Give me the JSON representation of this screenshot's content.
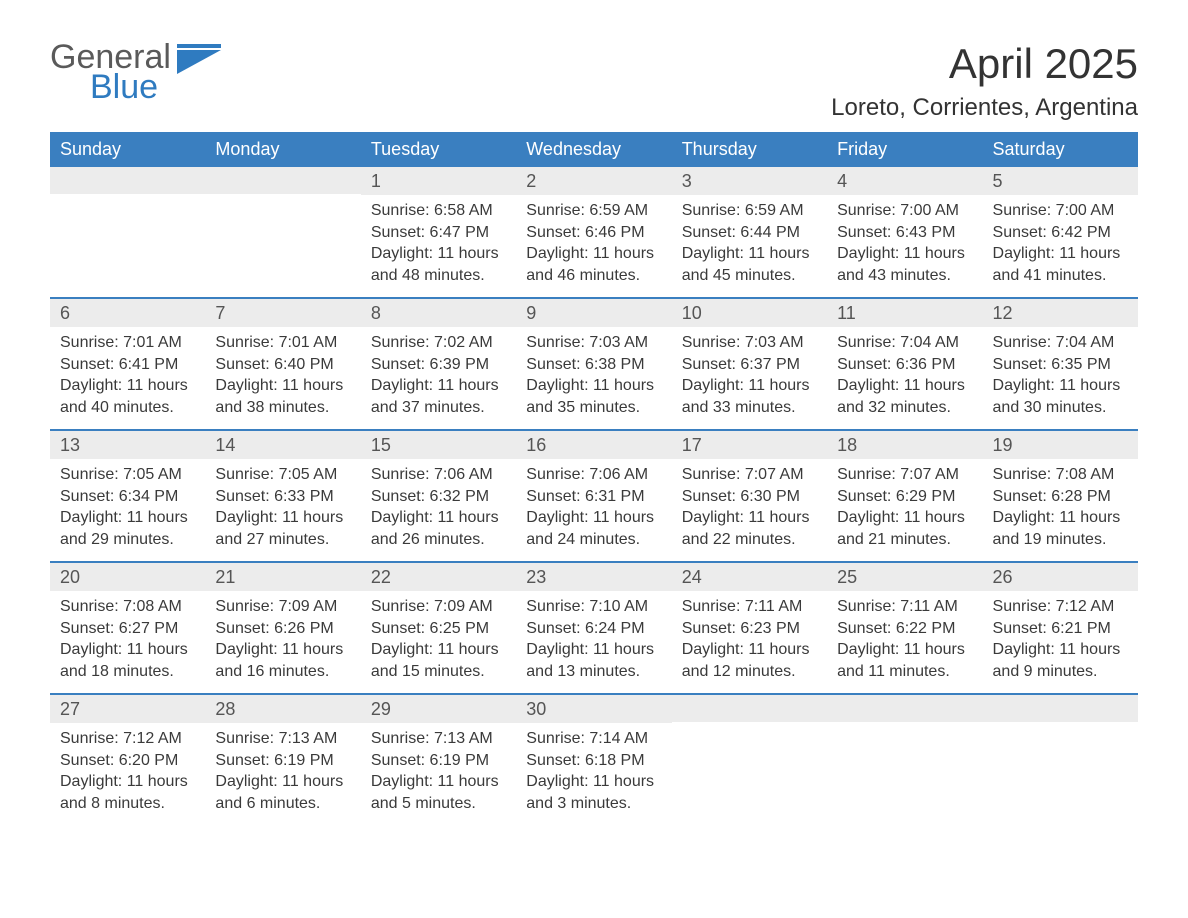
{
  "logo": {
    "text_general": "General",
    "text_blue": "Blue",
    "icon_color": "#2f7bc0"
  },
  "title": "April 2025",
  "location": "Loreto, Corrientes, Argentina",
  "colors": {
    "header_bg": "#3a7fc0",
    "header_text": "#ffffff",
    "daynum_bg": "#ececec",
    "week_border": "#3a7fc0",
    "body_text": "#3a3a3a",
    "title_text": "#333333",
    "logo_gray": "#5a5a5a",
    "logo_blue": "#2f7bc0",
    "background": "#ffffff"
  },
  "typography": {
    "title_fontsize": 42,
    "location_fontsize": 24,
    "dayheader_fontsize": 18,
    "daynum_fontsize": 18,
    "body_fontsize": 16,
    "logo_fontsize": 34
  },
  "day_names": [
    "Sunday",
    "Monday",
    "Tuesday",
    "Wednesday",
    "Thursday",
    "Friday",
    "Saturday"
  ],
  "weeks": [
    [
      {
        "day": "",
        "sunrise": "",
        "sunset": "",
        "daylight": ""
      },
      {
        "day": "",
        "sunrise": "",
        "sunset": "",
        "daylight": ""
      },
      {
        "day": "1",
        "sunrise": "Sunrise: 6:58 AM",
        "sunset": "Sunset: 6:47 PM",
        "daylight": "Daylight: 11 hours and 48 minutes."
      },
      {
        "day": "2",
        "sunrise": "Sunrise: 6:59 AM",
        "sunset": "Sunset: 6:46 PM",
        "daylight": "Daylight: 11 hours and 46 minutes."
      },
      {
        "day": "3",
        "sunrise": "Sunrise: 6:59 AM",
        "sunset": "Sunset: 6:44 PM",
        "daylight": "Daylight: 11 hours and 45 minutes."
      },
      {
        "day": "4",
        "sunrise": "Sunrise: 7:00 AM",
        "sunset": "Sunset: 6:43 PM",
        "daylight": "Daylight: 11 hours and 43 minutes."
      },
      {
        "day": "5",
        "sunrise": "Sunrise: 7:00 AM",
        "sunset": "Sunset: 6:42 PM",
        "daylight": "Daylight: 11 hours and 41 minutes."
      }
    ],
    [
      {
        "day": "6",
        "sunrise": "Sunrise: 7:01 AM",
        "sunset": "Sunset: 6:41 PM",
        "daylight": "Daylight: 11 hours and 40 minutes."
      },
      {
        "day": "7",
        "sunrise": "Sunrise: 7:01 AM",
        "sunset": "Sunset: 6:40 PM",
        "daylight": "Daylight: 11 hours and 38 minutes."
      },
      {
        "day": "8",
        "sunrise": "Sunrise: 7:02 AM",
        "sunset": "Sunset: 6:39 PM",
        "daylight": "Daylight: 11 hours and 37 minutes."
      },
      {
        "day": "9",
        "sunrise": "Sunrise: 7:03 AM",
        "sunset": "Sunset: 6:38 PM",
        "daylight": "Daylight: 11 hours and 35 minutes."
      },
      {
        "day": "10",
        "sunrise": "Sunrise: 7:03 AM",
        "sunset": "Sunset: 6:37 PM",
        "daylight": "Daylight: 11 hours and 33 minutes."
      },
      {
        "day": "11",
        "sunrise": "Sunrise: 7:04 AM",
        "sunset": "Sunset: 6:36 PM",
        "daylight": "Daylight: 11 hours and 32 minutes."
      },
      {
        "day": "12",
        "sunrise": "Sunrise: 7:04 AM",
        "sunset": "Sunset: 6:35 PM",
        "daylight": "Daylight: 11 hours and 30 minutes."
      }
    ],
    [
      {
        "day": "13",
        "sunrise": "Sunrise: 7:05 AM",
        "sunset": "Sunset: 6:34 PM",
        "daylight": "Daylight: 11 hours and 29 minutes."
      },
      {
        "day": "14",
        "sunrise": "Sunrise: 7:05 AM",
        "sunset": "Sunset: 6:33 PM",
        "daylight": "Daylight: 11 hours and 27 minutes."
      },
      {
        "day": "15",
        "sunrise": "Sunrise: 7:06 AM",
        "sunset": "Sunset: 6:32 PM",
        "daylight": "Daylight: 11 hours and 26 minutes."
      },
      {
        "day": "16",
        "sunrise": "Sunrise: 7:06 AM",
        "sunset": "Sunset: 6:31 PM",
        "daylight": "Daylight: 11 hours and 24 minutes."
      },
      {
        "day": "17",
        "sunrise": "Sunrise: 7:07 AM",
        "sunset": "Sunset: 6:30 PM",
        "daylight": "Daylight: 11 hours and 22 minutes."
      },
      {
        "day": "18",
        "sunrise": "Sunrise: 7:07 AM",
        "sunset": "Sunset: 6:29 PM",
        "daylight": "Daylight: 11 hours and 21 minutes."
      },
      {
        "day": "19",
        "sunrise": "Sunrise: 7:08 AM",
        "sunset": "Sunset: 6:28 PM",
        "daylight": "Daylight: 11 hours and 19 minutes."
      }
    ],
    [
      {
        "day": "20",
        "sunrise": "Sunrise: 7:08 AM",
        "sunset": "Sunset: 6:27 PM",
        "daylight": "Daylight: 11 hours and 18 minutes."
      },
      {
        "day": "21",
        "sunrise": "Sunrise: 7:09 AM",
        "sunset": "Sunset: 6:26 PM",
        "daylight": "Daylight: 11 hours and 16 minutes."
      },
      {
        "day": "22",
        "sunrise": "Sunrise: 7:09 AM",
        "sunset": "Sunset: 6:25 PM",
        "daylight": "Daylight: 11 hours and 15 minutes."
      },
      {
        "day": "23",
        "sunrise": "Sunrise: 7:10 AM",
        "sunset": "Sunset: 6:24 PM",
        "daylight": "Daylight: 11 hours and 13 minutes."
      },
      {
        "day": "24",
        "sunrise": "Sunrise: 7:11 AM",
        "sunset": "Sunset: 6:23 PM",
        "daylight": "Daylight: 11 hours and 12 minutes."
      },
      {
        "day": "25",
        "sunrise": "Sunrise: 7:11 AM",
        "sunset": "Sunset: 6:22 PM",
        "daylight": "Daylight: 11 hours and 11 minutes."
      },
      {
        "day": "26",
        "sunrise": "Sunrise: 7:12 AM",
        "sunset": "Sunset: 6:21 PM",
        "daylight": "Daylight: 11 hours and 9 minutes."
      }
    ],
    [
      {
        "day": "27",
        "sunrise": "Sunrise: 7:12 AM",
        "sunset": "Sunset: 6:20 PM",
        "daylight": "Daylight: 11 hours and 8 minutes."
      },
      {
        "day": "28",
        "sunrise": "Sunrise: 7:13 AM",
        "sunset": "Sunset: 6:19 PM",
        "daylight": "Daylight: 11 hours and 6 minutes."
      },
      {
        "day": "29",
        "sunrise": "Sunrise: 7:13 AM",
        "sunset": "Sunset: 6:19 PM",
        "daylight": "Daylight: 11 hours and 5 minutes."
      },
      {
        "day": "30",
        "sunrise": "Sunrise: 7:14 AM",
        "sunset": "Sunset: 6:18 PM",
        "daylight": "Daylight: 11 hours and 3 minutes."
      },
      {
        "day": "",
        "sunrise": "",
        "sunset": "",
        "daylight": ""
      },
      {
        "day": "",
        "sunrise": "",
        "sunset": "",
        "daylight": ""
      },
      {
        "day": "",
        "sunrise": "",
        "sunset": "",
        "daylight": ""
      }
    ]
  ]
}
